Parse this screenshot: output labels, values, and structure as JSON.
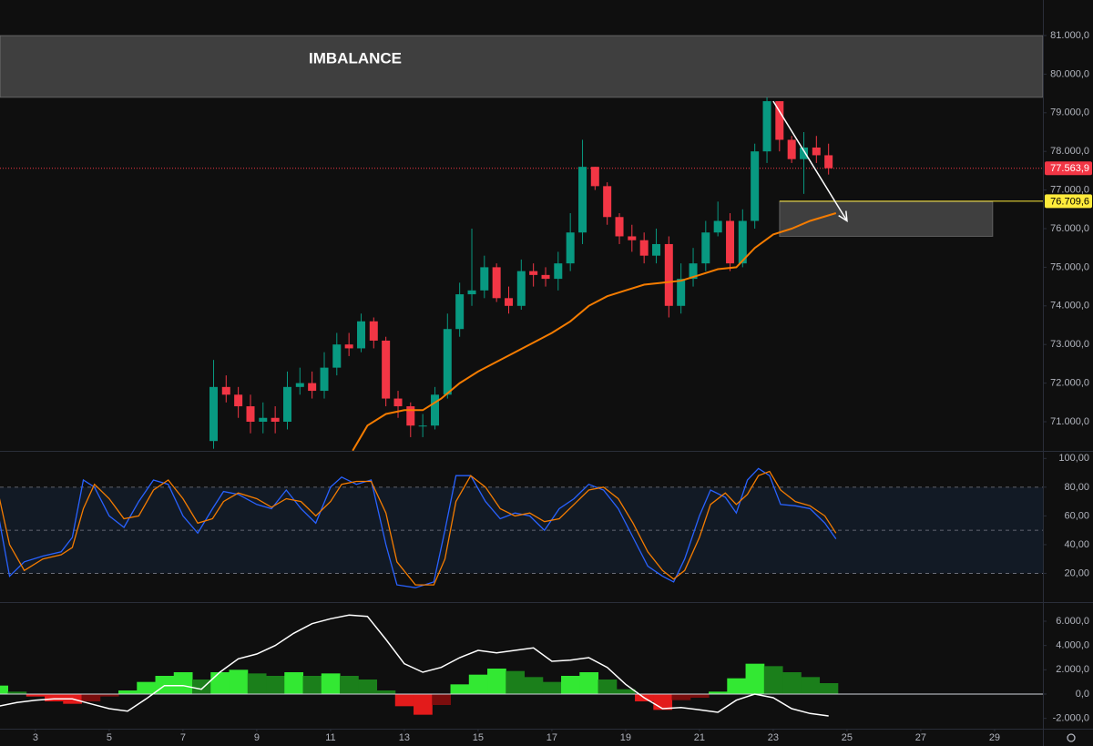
{
  "chart_data": [
    {
      "type": "candlestick",
      "xlim": [
        2.04,
        30.31
      ],
      "ylim": [
        70245,
        81920
      ],
      "yticks": [
        {
          "value": 71000,
          "label": "71.000,0"
        },
        {
          "value": 72000,
          "label": "72.000,0"
        },
        {
          "value": 73000,
          "label": "73.000,0"
        },
        {
          "value": 74000,
          "label": "74.000,0"
        },
        {
          "value": 75000,
          "label": "75.000,0"
        },
        {
          "value": 76000,
          "label": "76.000,0"
        },
        {
          "value": 77000,
          "label": "77.000,0"
        },
        {
          "value": 78000,
          "label": "78.000,0"
        },
        {
          "value": 79000,
          "label": "79.000,0"
        },
        {
          "value": 80000,
          "label": "80.000,0"
        },
        {
          "value": 81000,
          "label": "81.000,0"
        }
      ],
      "up_color": "#089981",
      "down_color": "#f23645",
      "x": [
        7.83,
        8.17,
        8.5,
        8.83,
        9.17,
        9.5,
        9.83,
        10.17,
        10.5,
        10.83,
        11.17,
        11.5,
        11.83,
        12.17,
        12.5,
        12.83,
        13.17,
        13.5,
        13.83,
        14.17,
        14.5,
        14.83,
        15.17,
        15.5,
        15.83,
        16.17,
        16.5,
        16.83,
        17.17,
        17.5,
        17.83,
        18.17,
        18.5,
        18.83,
        19.17,
        19.5,
        19.83,
        20.17,
        20.5,
        20.83,
        21.17,
        21.5,
        21.83,
        22.17,
        22.5,
        22.83,
        23.17,
        23.5,
        23.83,
        24.17,
        24.5
      ],
      "open": [
        70500,
        71900,
        71700,
        71400,
        71000,
        71100,
        71000,
        71900,
        72000,
        71800,
        72400,
        73000,
        72900,
        73600,
        73100,
        71600,
        71400,
        70900,
        70900,
        71700,
        73400,
        74300,
        74400,
        75000,
        74200,
        74000,
        74900,
        74800,
        74700,
        75100,
        75900,
        77600,
        77100,
        76300,
        75800,
        75700,
        75300,
        75600,
        74000,
        74700,
        75100,
        75900,
        76200,
        75100,
        76200,
        78000,
        79300,
        78300,
        77800,
        78100,
        77900
      ],
      "high": [
        72600,
        72200,
        71900,
        71700,
        71500,
        71400,
        72300,
        72400,
        72300,
        72800,
        73300,
        73300,
        73800,
        73700,
        73200,
        71800,
        71500,
        71200,
        71900,
        73800,
        74600,
        76000,
        75300,
        75100,
        74500,
        75200,
        75100,
        75000,
        75400,
        76400,
        78300,
        77600,
        77200,
        76400,
        76100,
        75900,
        76000,
        75800,
        75100,
        75500,
        76200,
        76700,
        76400,
        76500,
        78200,
        79400,
        79300,
        78400,
        78500,
        78400,
        78200
      ],
      "low": [
        70300,
        71500,
        71100,
        70700,
        70700,
        70700,
        70800,
        71700,
        71600,
        71600,
        72200,
        72700,
        72800,
        72900,
        71400,
        71100,
        70600,
        70600,
        70800,
        71600,
        73200,
        74000,
        74200,
        74100,
        73800,
        73900,
        74500,
        74500,
        74400,
        74900,
        75600,
        77000,
        76100,
        75600,
        75400,
        75100,
        75100,
        73700,
        73800,
        74500,
        74900,
        75800,
        74900,
        75000,
        76000,
        77700,
        78000,
        77700,
        76900,
        77700,
        77400
      ],
      "close": [
        71900,
        71700,
        71400,
        71000,
        71100,
        71000,
        71900,
        72000,
        71800,
        72400,
        73000,
        72900,
        73600,
        73100,
        71600,
        71400,
        70900,
        70900,
        71700,
        73400,
        74300,
        74400,
        75000,
        74200,
        74000,
        74900,
        74800,
        74700,
        75100,
        75900,
        77600,
        77100,
        76300,
        75800,
        75700,
        75300,
        75600,
        74000,
        74700,
        75100,
        75900,
        76200,
        75100,
        76200,
        78000,
        79300,
        78300,
        77800,
        78100,
        77900,
        77563.9
      ],
      "ma": {
        "color": "#f57c00",
        "x": [
          11.6,
          12.0,
          12.5,
          13.0,
          13.5,
          14.0,
          14.5,
          15.0,
          15.5,
          16.0,
          16.5,
          17.0,
          17.5,
          18.0,
          18.5,
          19.0,
          19.5,
          20.0,
          20.5,
          21.0,
          21.5,
          22.0,
          22.5,
          23.0,
          23.5,
          24.0,
          24.7
        ],
        "values": [
          70250,
          70900,
          71200,
          71300,
          71300,
          71600,
          72000,
          72300,
          72550,
          72800,
          73050,
          73300,
          73600,
          74000,
          74250,
          74400,
          74550,
          74600,
          74650,
          74800,
          74950,
          75000,
          75500,
          75850,
          76000,
          76200,
          76400
        ]
      },
      "zones": [
        {
          "label": "IMBALANCE",
          "y": [
            79400,
            81000
          ]
        },
        {
          "x": [
            23.17,
            28.95
          ],
          "y": [
            75800,
            76700
          ]
        }
      ],
      "price_lines": [
        {
          "value": 77563.9,
          "label": "77.563,9",
          "color": "#f23645"
        },
        {
          "value": 76709.6,
          "label": "76.709,6",
          "color": "#ffeb3b",
          "x_start": 23.17
        }
      ],
      "arrow": {
        "x": [
          23.0,
          25.0
        ],
        "y": [
          79300,
          76200
        ]
      }
    },
    {
      "type": "line",
      "xlim": [
        2.04,
        30.31
      ],
      "ylim": [
        0,
        104
      ],
      "yticks": [
        {
          "value": 20,
          "label": "20,00"
        },
        {
          "value": 40,
          "label": "40,00"
        },
        {
          "value": 60,
          "label": "60,00"
        },
        {
          "value": 80,
          "label": "80,00"
        },
        {
          "value": 100,
          "label": "100,00"
        }
      ],
      "band": [
        20,
        80
      ],
      "levels": [
        20,
        50,
        80
      ],
      "x": [
        2.0,
        2.3,
        2.7,
        3.2,
        3.7,
        4.0,
        4.3,
        4.6,
        5.0,
        5.4,
        5.8,
        6.2,
        6.6,
        7.0,
        7.4,
        7.8,
        8.1,
        8.5,
        9.0,
        9.4,
        9.8,
        10.2,
        10.6,
        11.0,
        11.3,
        11.7,
        12.1,
        12.5,
        12.8,
        13.3,
        13.8,
        14.1,
        14.4,
        14.8,
        15.2,
        15.6,
        16.0,
        16.4,
        16.8,
        17.2,
        17.6,
        18.0,
        18.4,
        18.8,
        19.2,
        19.6,
        20.0,
        20.3,
        20.6,
        21.0,
        21.3,
        21.7,
        22.0,
        22.3,
        22.6,
        22.9,
        23.2,
        23.6,
        24.0,
        24.4,
        24.7
      ],
      "k": {
        "color": "#2962ff",
        "values": [
          60,
          18,
          28,
          32,
          35,
          45,
          85,
          80,
          60,
          52,
          70,
          85,
          82,
          60,
          48,
          65,
          77,
          75,
          68,
          65,
          78,
          65,
          55,
          80,
          87,
          82,
          85,
          40,
          12,
          10,
          14,
          50,
          88,
          88,
          70,
          58,
          62,
          60,
          50,
          65,
          72,
          82,
          78,
          65,
          45,
          25,
          18,
          14,
          30,
          60,
          78,
          73,
          62,
          85,
          93,
          88,
          68,
          67,
          65,
          55,
          44
        ]
      },
      "d": {
        "color": "#f57c00",
        "values": [
          75,
          40,
          22,
          30,
          33,
          38,
          65,
          82,
          72,
          58,
          60,
          78,
          85,
          72,
          55,
          58,
          70,
          76,
          72,
          66,
          72,
          70,
          60,
          70,
          82,
          84,
          84,
          62,
          28,
          12,
          12,
          30,
          70,
          88,
          80,
          65,
          60,
          62,
          56,
          58,
          68,
          78,
          80,
          72,
          55,
          35,
          22,
          16,
          22,
          45,
          68,
          76,
          68,
          75,
          88,
          91,
          78,
          70,
          67,
          60,
          48
        ]
      }
    },
    {
      "type": "bar",
      "xlim": [
        2.04,
        30.31
      ],
      "ylim": [
        -2850,
        7500
      ],
      "yticks": [
        {
          "value": -2000,
          "label": "-2.000,0"
        },
        {
          "value": 0,
          "label": "0,0"
        },
        {
          "value": 2000,
          "label": "2.000,0"
        },
        {
          "value": 4000,
          "label": "4.000,0"
        },
        {
          "value": 6000,
          "label": "6.000,0"
        }
      ],
      "xticks": [
        3,
        5,
        7,
        9,
        11,
        13,
        15,
        17,
        19,
        21,
        23,
        25,
        27,
        29
      ],
      "x": [
        2.0,
        2.5,
        3.0,
        3.5,
        4.0,
        4.5,
        5.0,
        5.5,
        6.0,
        6.5,
        7.0,
        7.5,
        8.0,
        8.5,
        9.0,
        9.5,
        10.0,
        10.5,
        11.0,
        11.5,
        12.0,
        12.5,
        13.0,
        13.5,
        14.0,
        14.5,
        15.0,
        15.5,
        16.0,
        16.5,
        17.0,
        17.5,
        18.0,
        18.5,
        19.0,
        19.5,
        20.0,
        20.5,
        21.0,
        21.5,
        22.0,
        22.5,
        23.0,
        23.5,
        24.0,
        24.5
      ],
      "histogram": {
        "colors": {
          "pos_up": "#33e833",
          "pos_down": "#1b7f1b",
          "neg_down": "#e31b1b",
          "neg_up": "#7a0d0d"
        },
        "values": [
          700,
          200,
          -200,
          -600,
          -800,
          -600,
          -200,
          300,
          1000,
          1500,
          1800,
          1200,
          1800,
          2000,
          1700,
          1500,
          1800,
          1500,
          1700,
          1500,
          1200,
          300,
          -1000,
          -1700,
          -900,
          800,
          1600,
          2100,
          1900,
          1400,
          1000,
          1500,
          1800,
          1200,
          400,
          -600,
          -1300,
          -500,
          -300,
          200,
          1300,
          2500,
          2300,
          1800,
          1400,
          900
        ]
      },
      "line": {
        "color": "#ffffff",
        "values": [
          -1000,
          -700,
          -500,
          -400,
          -400,
          -800,
          -1200,
          -1400,
          -400,
          700,
          700,
          400,
          1800,
          2900,
          3300,
          4000,
          5000,
          5800,
          6200,
          6500,
          6400,
          4500,
          2500,
          1800,
          2200,
          3000,
          3600,
          3400,
          3600,
          3800,
          2700,
          2800,
          3000,
          2200,
          800,
          -300,
          -1200,
          -1100,
          -1300,
          -1500,
          -500,
          0,
          -300,
          -1200,
          -1600,
          -1800
        ]
      }
    }
  ]
}
